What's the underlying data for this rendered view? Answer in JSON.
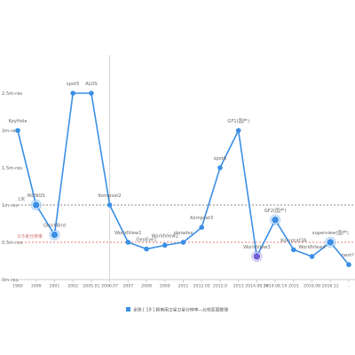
{
  "chart_data": {
    "type": "line",
    "categories": [
      "1960",
      "1999",
      "2001",
      "2002",
      "2005.01",
      "2006.07",
      "2007",
      "2008",
      "2009",
      "2011",
      "2012.05",
      "2012.9",
      "2013",
      "2014.08.14",
      "2014.08.19",
      "2015",
      "2016.09",
      "2016.12",
      "-"
    ],
    "series": [
      {
        "name": "全球 [ 19 ] 颗商用卫星卫星分辨率—比较亚图整理",
        "values": [
          2,
          1,
          0.6,
          2.5,
          2.5,
          1,
          0.5,
          0.41,
          0.46,
          0.5,
          0.7,
          1.5,
          2,
          0.31,
          0.8,
          0.4,
          0.31,
          0.5,
          0.2
        ],
        "point_labels": [
          "KeyHole",
          "IKONOS",
          "QuickBird",
          "spot5",
          "ALOS",
          "Kompsat2",
          "WorldView1",
          "GeoEye1",
          "WorldView2",
          "pleiades",
          "Kompsat3",
          "spot6",
          "GF1(国产)",
          "WorldView3",
          "GF2(国产)",
          "Kompsat3A",
          "WorldView4",
          "superview(国产)",
          "next?"
        ],
        "color": "#3b8fe5"
      }
    ],
    "highlighted_points": [
      {
        "label": "IKONOS",
        "color": "#3b8fe5"
      },
      {
        "label": "QuickBird",
        "color": "#3b8fe5"
      },
      {
        "label": "WorldView3",
        "color": "#6f62d8"
      },
      {
        "label": "GF2(国产)",
        "color": "#3b8fe5"
      },
      {
        "label": "superview(国产)",
        "color": "#3b8fe5"
      }
    ],
    "y_ticks": [
      {
        "value": 0,
        "label": "0m-res"
      },
      {
        "value": 0.5,
        "label": "0.5m-res"
      },
      {
        "value": 1,
        "label": "1m-res"
      },
      {
        "value": 1.5,
        "label": "1.5m-res"
      },
      {
        "value": 2,
        "label": "2m-res"
      },
      {
        "value": 2.5,
        "label": "2.5m-res"
      }
    ],
    "ylim": [
      0,
      2.5
    ],
    "reference_lines": [
      {
        "value": 1,
        "label": "1米",
        "color": "#8a8a8a",
        "label_color": "#777777"
      },
      {
        "value": 0.5,
        "label": "0.5米分辨率",
        "color": "#e07a7a",
        "label_color": "#c96b6b"
      }
    ],
    "hover_category": "2006.07",
    "grid": false,
    "legend_position": "bottom"
  }
}
